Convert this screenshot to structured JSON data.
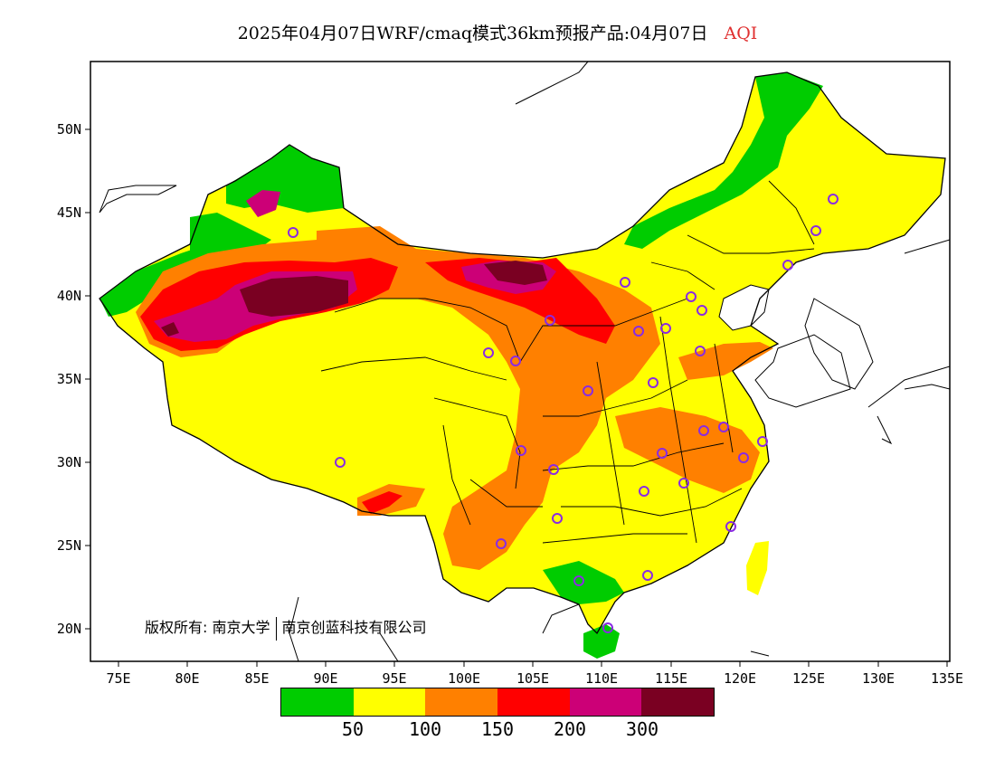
{
  "title": {
    "main": "2025年04月07日WRF/cmaq模式36km预报产品:04月07日",
    "variable": "AQI"
  },
  "axes": {
    "x_ticks": [
      "75E",
      "80E",
      "85E",
      "90E",
      "95E",
      "100E",
      "105E",
      "110E",
      "115E",
      "120E",
      "125E",
      "130E",
      "135E"
    ],
    "y_ticks": [
      "50N",
      "45N",
      "40N",
      "35N",
      "30N",
      "25N",
      "20N"
    ]
  },
  "copyright": {
    "prefix": "版权所有:",
    "org1": "南京大学",
    "org2": "南京创蓝科技有限公司"
  },
  "legend": {
    "colors": [
      "#00cc00",
      "#ffff00",
      "#ff8000",
      "#ff0000",
      "#cc0077",
      "#7a0022"
    ],
    "labels": [
      "50",
      "100",
      "150",
      "200",
      "300"
    ]
  },
  "colors": {
    "good": "#00cc00",
    "moderate": "#ffff00",
    "sensitive": "#ff8000",
    "unhealthy": "#ff0000",
    "very_unhealthy": "#cc0077",
    "hazardous": "#7a0022",
    "station_marker": "#8a2be2"
  }
}
